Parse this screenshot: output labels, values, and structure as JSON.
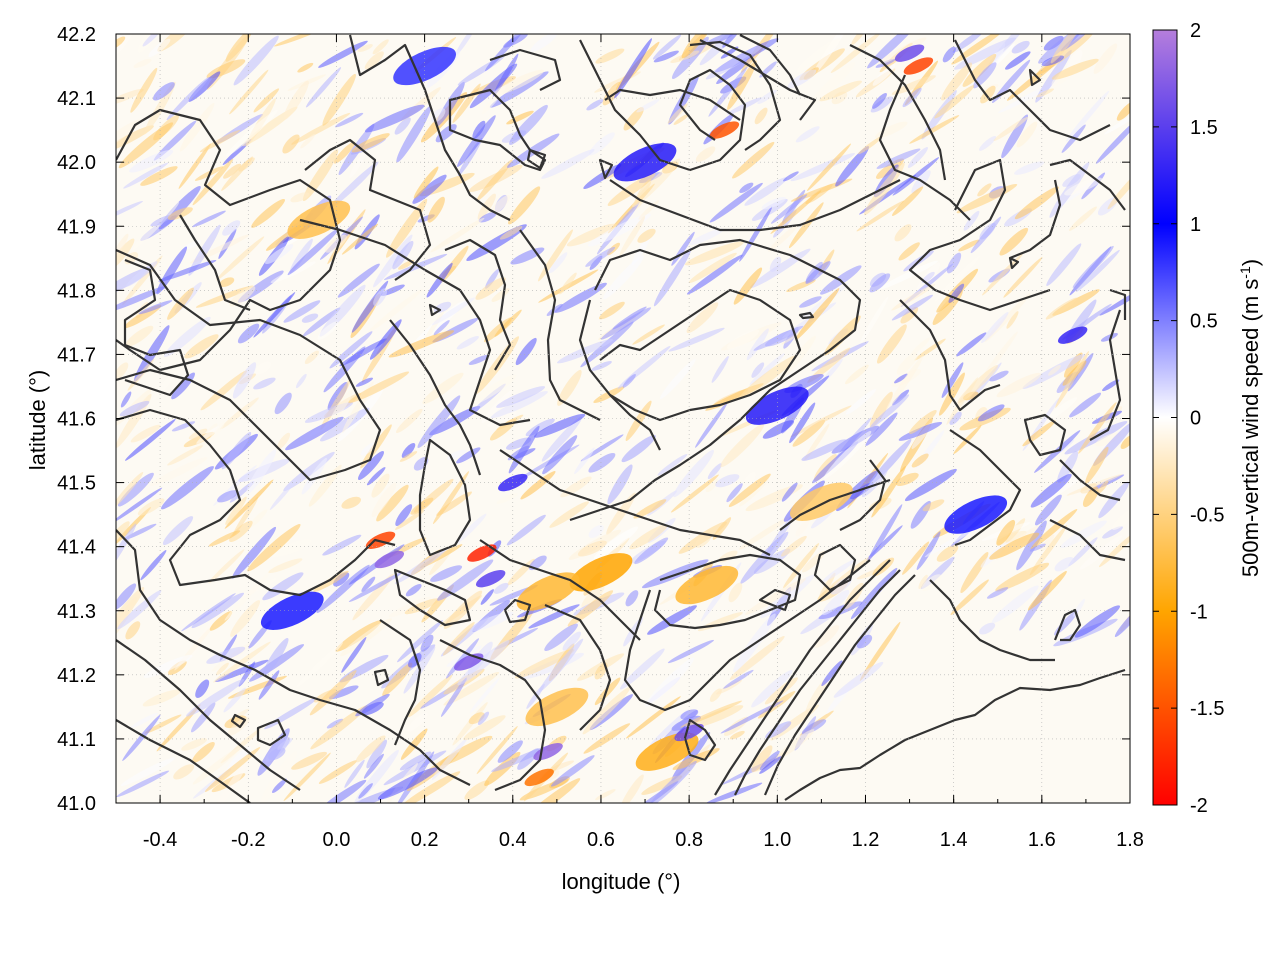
{
  "chart_data": {
    "type": "heatmap",
    "title": "",
    "xlabel": "longitude (°)",
    "ylabel": "latitude (°)",
    "xlim": [
      -0.5,
      1.8
    ],
    "ylim": [
      41.0,
      42.2
    ],
    "x_ticks": [
      -0.4,
      -0.2,
      0.0,
      0.2,
      0.4,
      0.6,
      0.8,
      1.0,
      1.2,
      1.4,
      1.6,
      1.8
    ],
    "x_tick_labels": [
      "-0.4",
      "-0.2",
      "0.0",
      "0.2",
      "0.4",
      "0.6",
      "0.8",
      "1.0",
      "1.2",
      "1.4",
      "1.6",
      "1.8"
    ],
    "y_ticks": [
      41.0,
      41.1,
      41.2,
      41.3,
      41.4,
      41.5,
      41.6,
      41.7,
      41.8,
      41.9,
      42.0,
      42.1,
      42.2
    ],
    "y_tick_labels": [
      "41.0",
      "41.1",
      "41.2",
      "41.3",
      "41.4",
      "41.5",
      "41.6",
      "41.7",
      "41.8",
      "41.9",
      "42.0",
      "42.1",
      "42.2"
    ],
    "grid": true,
    "colorbar": {
      "label_main": "500m-vertical wind speed (m s",
      "label_sup": "-1",
      "label_close": ")",
      "range": [
        -2,
        2
      ],
      "ticks": [
        -2,
        -1.5,
        -1,
        -0.5,
        0,
        0.5,
        1,
        1.5,
        2
      ],
      "tick_labels": [
        "-2",
        "-1.5",
        "-1",
        "-0.5",
        "0",
        "0.5",
        "1",
        "1.5",
        "2"
      ],
      "stops": [
        {
          "value": -2,
          "color": "#ff0000"
        },
        {
          "value": -1,
          "color": "#ffa500"
        },
        {
          "value": 0,
          "color": "#ffffff"
        },
        {
          "value": 1,
          "color": "#0000ff"
        },
        {
          "value": 2,
          "color": "#b57edc"
        }
      ]
    },
    "field_features": [
      {
        "lon": 0.33,
        "lat": 41.39,
        "value": -1.8
      },
      {
        "lon": 0.1,
        "lat": 41.41,
        "value": -1.6
      },
      {
        "lon": 0.88,
        "lat": 42.05,
        "value": -1.5
      },
      {
        "lon": 1.32,
        "lat": 42.15,
        "value": -1.6
      },
      {
        "lon": 0.46,
        "lat": 41.04,
        "value": -1.3
      },
      {
        "lon": 0.6,
        "lat": 41.36,
        "value": -1.0
      },
      {
        "lon": 0.48,
        "lat": 41.33,
        "value": -0.8
      },
      {
        "lon": -0.04,
        "lat": 41.91,
        "value": -0.7
      },
      {
        "lon": 0.84,
        "lat": 41.34,
        "value": -0.8
      },
      {
        "lon": 1.1,
        "lat": 41.47,
        "value": -0.6
      },
      {
        "lon": 0.5,
        "lat": 41.15,
        "value": -0.7
      },
      {
        "lon": 0.75,
        "lat": 41.08,
        "value": -0.9
      },
      {
        "lon": 0.4,
        "lat": 41.5,
        "value": 1.3
      },
      {
        "lon": 0.12,
        "lat": 41.38,
        "value": 1.8
      },
      {
        "lon": 0.35,
        "lat": 41.35,
        "value": 1.5
      },
      {
        "lon": 0.48,
        "lat": 41.08,
        "value": 1.8
      },
      {
        "lon": 0.8,
        "lat": 41.11,
        "value": 1.6
      },
      {
        "lon": 1.3,
        "lat": 42.17,
        "value": 1.6
      },
      {
        "lon": 0.3,
        "lat": 41.22,
        "value": 1.7
      },
      {
        "lon": 1.0,
        "lat": 41.62,
        "value": 1.2
      },
      {
        "lon": 1.67,
        "lat": 41.73,
        "value": 1.3
      },
      {
        "lon": -0.1,
        "lat": 41.3,
        "value": 0.9
      },
      {
        "lon": 0.7,
        "lat": 42.0,
        "value": 1.2
      },
      {
        "lon": 0.2,
        "lat": 42.15,
        "value": 0.8
      },
      {
        "lon": 1.45,
        "lat": 41.45,
        "value": 0.9
      }
    ]
  }
}
